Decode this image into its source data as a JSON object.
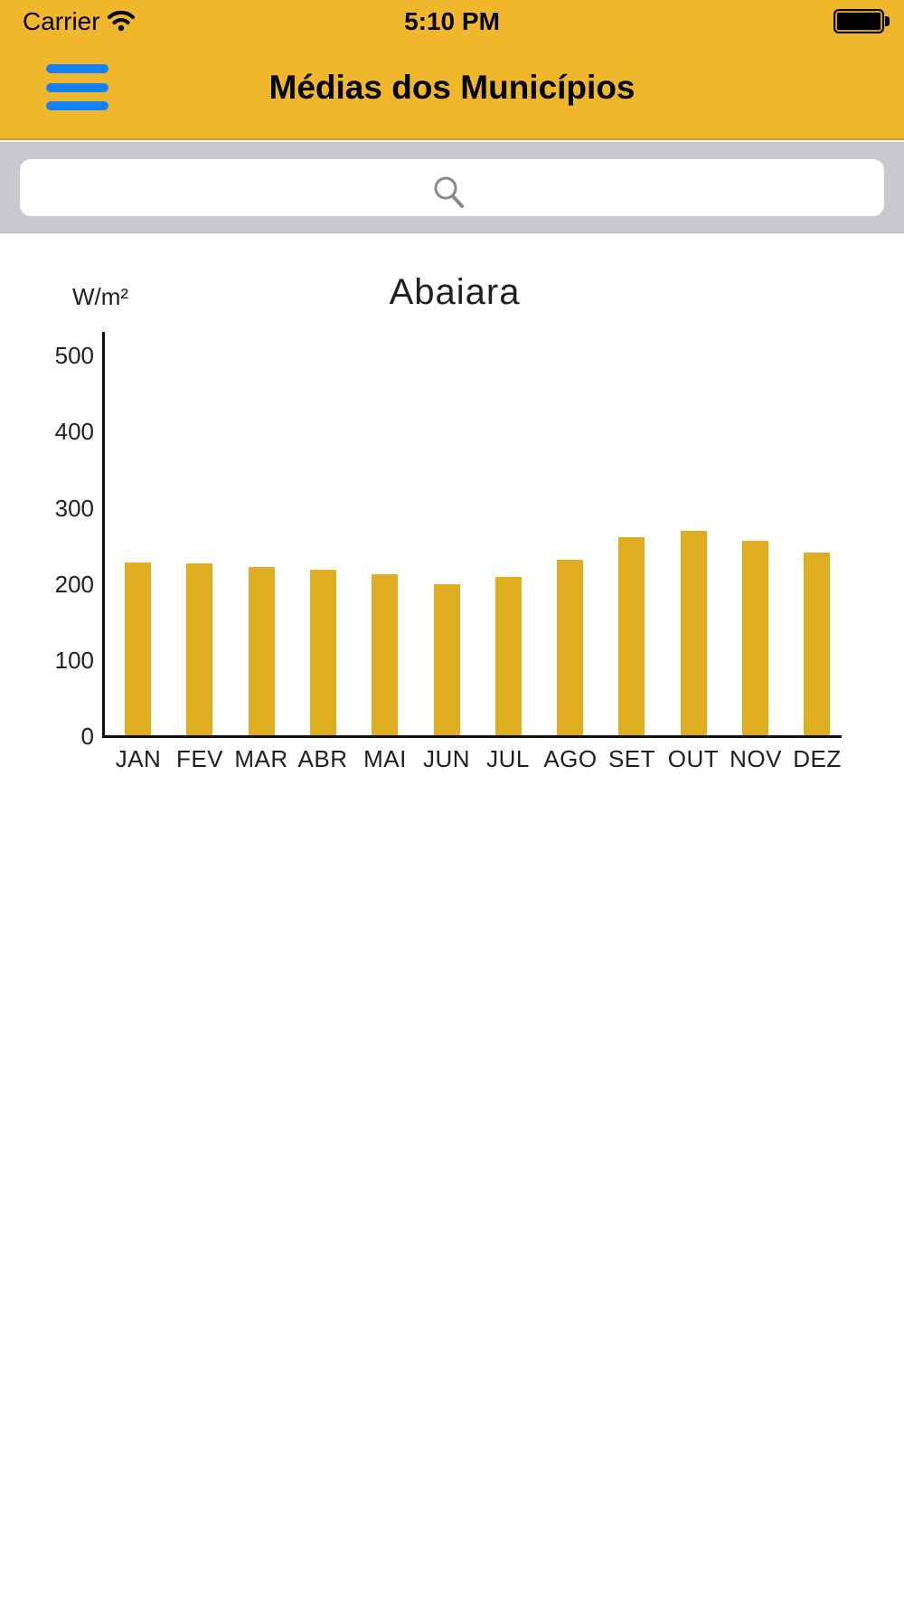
{
  "status_bar": {
    "carrier": "Carrier",
    "time": "5:10 PM",
    "wifi_icon": "wifi-icon",
    "battery_icon": "battery-full-icon"
  },
  "header": {
    "title": "Médias dos Municípios",
    "menu_icon": "hamburger-menu-icon"
  },
  "search": {
    "placeholder": "",
    "value": "",
    "icon": "search-icon"
  },
  "chart_data": {
    "type": "bar",
    "title": "Abaiara",
    "ylabel": "W/m²",
    "xlabel": "",
    "categories": [
      "JAN",
      "FEV",
      "MAR",
      "ABR",
      "MAI",
      "JUN",
      "JUL",
      "AGO",
      "SET",
      "OUT",
      "NOV",
      "DEZ"
    ],
    "values": [
      227,
      226,
      221,
      218,
      211,
      198,
      208,
      230,
      260,
      268,
      255,
      240
    ],
    "ylim": [
      0,
      530
    ],
    "yticks": [
      0,
      100,
      200,
      300,
      400,
      500
    ],
    "grid": false,
    "legend": null,
    "bar_color": "#DFAE20"
  },
  "colors": {
    "header_yellow": "#F0B72D",
    "menu_blue": "#1480FA",
    "search_strip": "#C9C8CE",
    "search_icon_gray": "#8A8A8E",
    "bar_gold": "#DFAE20",
    "chart_text": "#1F1F1F",
    "status_text": "#000000"
  }
}
